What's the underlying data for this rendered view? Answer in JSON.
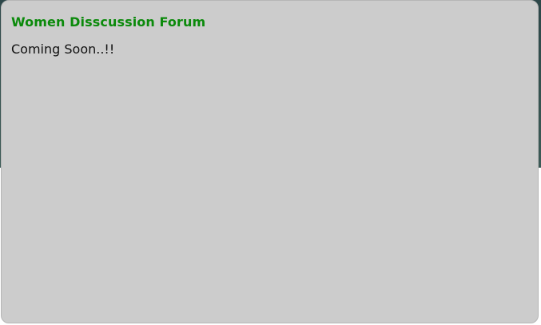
{
  "forum": {
    "title": "Women Disscussion Forum",
    "message": "Coming Soon..!!"
  },
  "colors": {
    "title": "#0b8a0b",
    "panel_background": "#cccccc",
    "backdrop": "#35524f"
  }
}
